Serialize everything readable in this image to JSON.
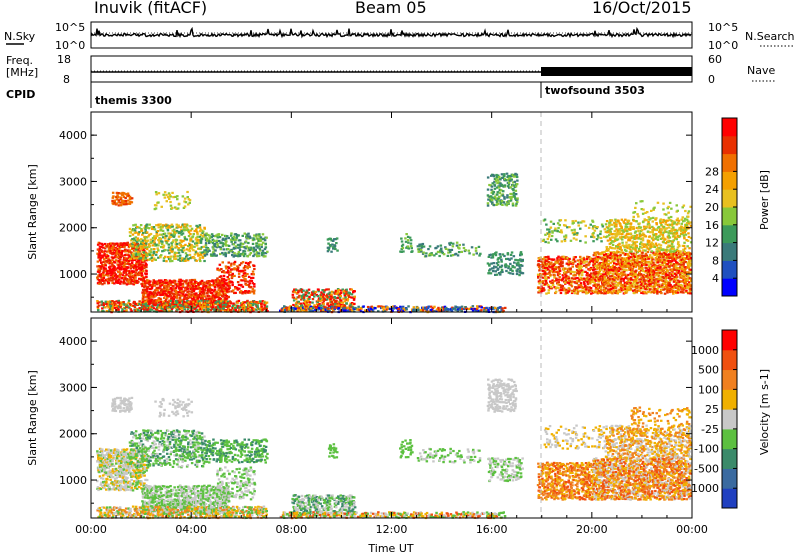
{
  "header": {
    "station": "Inuvik (fitACF)",
    "beam": "Beam 05",
    "date": "16/Oct/2015"
  },
  "panels": {
    "nsky": {
      "label": "N.Sky",
      "right_label": "N.Search",
      "top_tick": "10^5",
      "bottom_tick": "10^0",
      "right_top_tick": "10^5",
      "right_bottom_tick": "10^0"
    },
    "freq": {
      "label_line1": "Freq.",
      "label_line2": "[MHz]",
      "top_tick": "18",
      "bottom_tick": "8",
      "right_label": "Nave",
      "right_top_tick": "60",
      "right_bottom_tick": "0"
    },
    "cpid": {
      "label": "CPID",
      "programs": [
        {
          "name": "themis 3300",
          "start_hour": 0
        },
        {
          "name": "twofsound 3503",
          "start_hour": 18
        }
      ]
    }
  },
  "chart_data": [
    {
      "type": "heatmap",
      "name": "Power",
      "ylabel": "Slant Range [km]",
      "xlabel": "",
      "xlim": [
        0,
        24
      ],
      "ylim": [
        180,
        4500
      ],
      "yticks": [
        "1000",
        "2000",
        "3000",
        "4000"
      ],
      "colorbar": {
        "label": "Power [dB]",
        "ticks": [
          "4",
          "8",
          "12",
          "16",
          "20",
          "24",
          "28"
        ],
        "colors": [
          "#0000ff",
          "#2050c0",
          "#3a7a7a",
          "#3c9a5a",
          "#88c83a",
          "#e8c020",
          "#f5a000",
          "#f07000",
          "#e83000",
          "#ff0000"
        ]
      }
    },
    {
      "type": "heatmap",
      "name": "Velocity",
      "ylabel": "Slant Range [km]",
      "xlabel": "Time UT",
      "xlim": [
        0,
        24
      ],
      "ylim": [
        180,
        4500
      ],
      "xticks": [
        "00:00",
        "04:00",
        "08:00",
        "12:00",
        "16:00",
        "20:00",
        "00:00"
      ],
      "yticks": [
        "1000",
        "2000",
        "3000",
        "4000"
      ],
      "colorbar": {
        "label": "Velocity [m s-1]",
        "ticks": [
          "1000",
          "500",
          "100",
          "25",
          "-25",
          "-100",
          "-500",
          "-1000"
        ],
        "colors": [
          "#2040c0",
          "#3a6aa0",
          "#3a8a6a",
          "#5cc040",
          "#c8c8c8",
          "#f0b000",
          "#f08020",
          "#f05010",
          "#ff0000"
        ]
      }
    }
  ],
  "colors": {
    "gray_scatter": "#c8c8c8",
    "marker_line": "#c0c0c0"
  }
}
